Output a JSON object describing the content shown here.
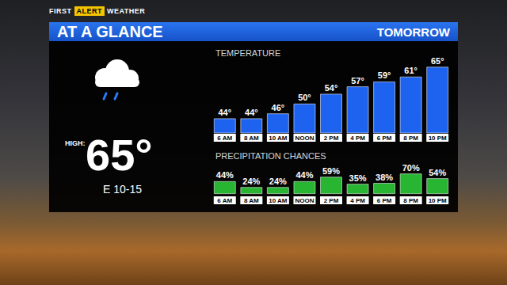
{
  "header": {
    "logo": [
      "FIRST",
      "ALERT",
      "WEATHER"
    ],
    "title": "AT A GLANCE",
    "period": "TOMORROW"
  },
  "summary": {
    "high_label": "HIGH:",
    "high": "65°",
    "wind": "E 10-15"
  },
  "chart_data": [
    {
      "type": "bar",
      "title": "TEMPERATURE",
      "categories": [
        "6 AM",
        "8 AM",
        "10 AM",
        "NOON",
        "2 PM",
        "4 PM",
        "6 PM",
        "8 PM",
        "10 PM"
      ],
      "values": [
        44,
        44,
        46,
        50,
        54,
        57,
        59,
        61,
        65
      ],
      "value_labels": [
        "44°",
        "44°",
        "46°",
        "50°",
        "54°",
        "57°",
        "59°",
        "61°",
        "65°"
      ],
      "color": "#1e63f0",
      "ylim": [
        38,
        68
      ],
      "data_labels": true,
      "tick_labels": "x",
      "grid": false
    },
    {
      "type": "bar",
      "title": "PRECIPITATION CHANCES",
      "categories": [
        "6 AM",
        "8 AM",
        "10 AM",
        "NOON",
        "2 PM",
        "4 PM",
        "6 PM",
        "8 PM",
        "10 PM"
      ],
      "values": [
        44,
        24,
        24,
        44,
        59,
        35,
        38,
        70,
        54
      ],
      "value_labels": [
        "44%",
        "24%",
        "24%",
        "44%",
        "59%",
        "35%",
        "38%",
        "70%",
        "54%"
      ],
      "color": "#27b532",
      "ylim": [
        -5,
        100
      ],
      "data_labels": true,
      "tick_labels": "x",
      "grid": false
    }
  ]
}
